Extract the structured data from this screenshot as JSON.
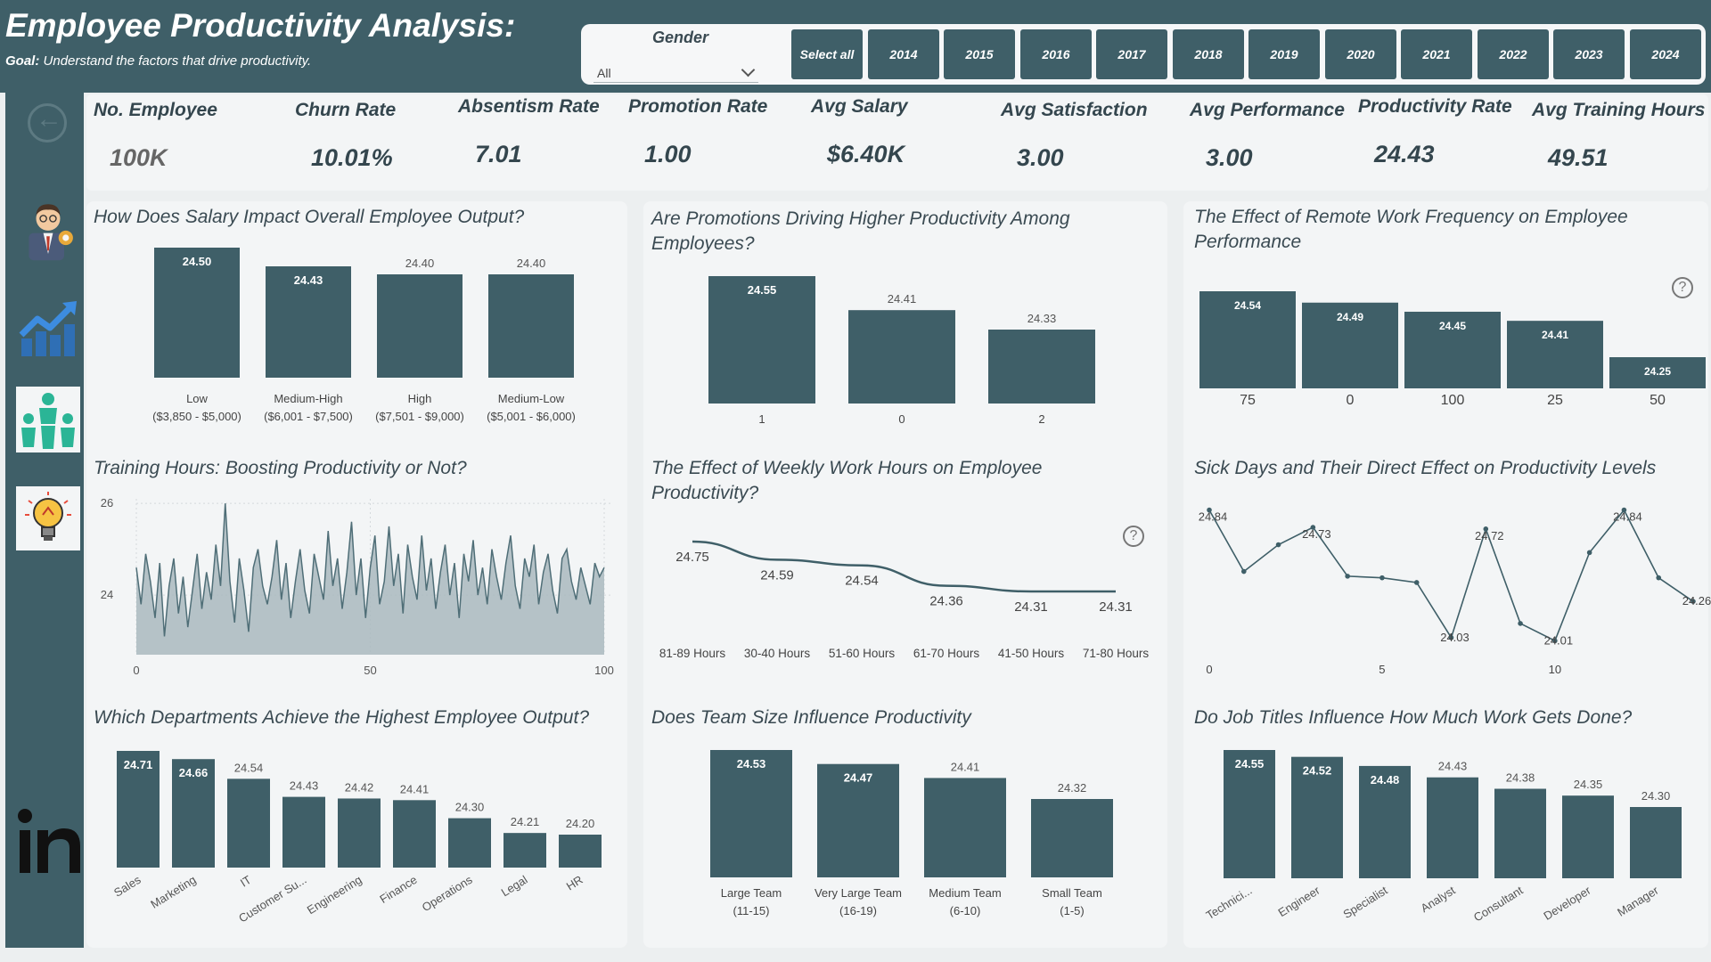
{
  "header": {
    "title": "Employee Productivity Analysis:",
    "goal_label": "Goal:",
    "goal_text": "Understand the factors that drive productivity."
  },
  "filters": {
    "gender_label": "Gender",
    "gender_value": "All",
    "years": [
      "Select all",
      "2014",
      "2015",
      "2016",
      "2017",
      "2018",
      "2019",
      "2020",
      "2021",
      "2022",
      "2023",
      "2024"
    ]
  },
  "kpis": [
    {
      "label": "No. Employee",
      "value": "100K"
    },
    {
      "label": "Churn Rate",
      "value": "10.01%"
    },
    {
      "label": "Absentism Rate",
      "value": "7.01"
    },
    {
      "label": "Promotion Rate",
      "value": "1.00"
    },
    {
      "label": "Avg Salary",
      "value": "$6.40K"
    },
    {
      "label": "Avg Satisfaction",
      "value": "3.00"
    },
    {
      "label": "Avg Performance",
      "value": "3.00"
    },
    {
      "label": "Productivity Rate",
      "value": "24.43"
    },
    {
      "label": "Avg Training Hours",
      "value": "49.51"
    }
  ],
  "sidebar": {
    "icons": [
      "back-icon",
      "manager-icon",
      "trend-chart-icon",
      "team-icon",
      "idea-bulb-icon",
      "linkedin-icon"
    ]
  },
  "colors": {
    "bar": "#3f5f68",
    "header": "#3f5f68",
    "area": "#a9b9be"
  },
  "chart_data": [
    {
      "id": "salary",
      "type": "bar",
      "title": "How Does Salary Impact Overall Employee Output?",
      "categories": [
        "Low ($3,850 - $5,000)",
        "Medium-High ($6,001 - $7,500)",
        "High ($7,501 - $9,000)",
        "Medium-Low ($5,001 - $6,000)"
      ],
      "values": [
        24.5,
        24.43,
        24.4,
        24.4
      ]
    },
    {
      "id": "promotions",
      "type": "bar",
      "title": "Are Promotions Driving Higher Productivity Among Employees?",
      "categories": [
        "1",
        "0",
        "2"
      ],
      "values": [
        24.55,
        24.41,
        24.33
      ]
    },
    {
      "id": "remote",
      "type": "bar",
      "title": "The Effect of Remote Work Frequency on Employee Performance",
      "categories": [
        "75",
        "0",
        "100",
        "25",
        "50"
      ],
      "values": [
        24.54,
        24.49,
        24.45,
        24.41,
        24.25
      ]
    },
    {
      "id": "training",
      "type": "area",
      "title": "Training Hours: Boosting Productivity or Not?",
      "x_ticks": [
        "0",
        "50",
        "100"
      ],
      "y_ticks": [
        "24",
        "26"
      ],
      "xlim": [
        0,
        100
      ],
      "ylim": [
        22.7,
        26.1
      ],
      "values": [
        24.6,
        23.8,
        24.9,
        24.3,
        23.5,
        24.7,
        23.1,
        24.2,
        24.8,
        23.6,
        24.4,
        23.3,
        24.1,
        24.9,
        23.7,
        24.5,
        23.9,
        25.1,
        24.2,
        26.0,
        24.3,
        23.4,
        24.8,
        24.1,
        23.2,
        24.6,
        25.0,
        24.2,
        23.8,
        24.4,
        25.2,
        23.9,
        24.7,
        23.5,
        24.3,
        25.0,
        24.1,
        23.6,
        24.9,
        24.4,
        23.9,
        25.4,
        24.2,
        24.8,
        23.7,
        24.5,
        25.6,
        24.0,
        24.8,
        23.5,
        24.6,
        25.3,
        23.8,
        24.3,
        25.5,
        24.2,
        24.9,
        23.6,
        25.1,
        24.4,
        23.9,
        25.3,
        24.1,
        24.8,
        23.7,
        24.5,
        25.1,
        24.0,
        24.7,
        23.5,
        24.9,
        24.3,
        25.2,
        24.0,
        24.6,
        23.8,
        25.0,
        24.4,
        23.9,
        24.7,
        25.3,
        24.2,
        23.7,
        24.8,
        24.4,
        25.1,
        23.8,
        24.5,
        24.9,
        24.1,
        23.6,
        24.8,
        25.0,
        24.3,
        23.9,
        24.6,
        24.2,
        23.8,
        24.7,
        24.4,
        24.6
      ],
      "series_count": 101
    },
    {
      "id": "weekly_hours",
      "type": "line",
      "title": "The Effect of Weekly Work Hours on Employee Productivity?",
      "categories": [
        "81-89 Hours",
        "30-40 Hours",
        "51-60 Hours",
        "61-70 Hours",
        "41-50 Hours",
        "71-80 Hours"
      ],
      "values": [
        24.75,
        24.59,
        24.54,
        24.36,
        24.31,
        24.31
      ]
    },
    {
      "id": "sick_days",
      "type": "line",
      "title": "Sick Days and Their Direct Effect on Productivity Levels",
      "x_ticks": [
        "0",
        "5",
        "10"
      ],
      "xlim": [
        0,
        14
      ],
      "ylim": [
        23.95,
        24.9
      ],
      "values": [
        24.84,
        24.45,
        24.62,
        24.73,
        24.42,
        24.41,
        24.38,
        24.03,
        24.72,
        24.12,
        24.01,
        24.57,
        24.84,
        24.41,
        24.26
      ],
      "labels": {
        "0": "24.84",
        "3": "24.73",
        "7": "24.03",
        "8": "24.72",
        "10": "24.01",
        "12": "24.84",
        "14": "24.26"
      }
    },
    {
      "id": "departments",
      "type": "bar",
      "title": "Which Departments Achieve the Highest Employee Output?",
      "categories": [
        "Sales",
        "Marketing",
        "IT",
        "Customer Su...",
        "Engineering",
        "Finance",
        "Operations",
        "Legal",
        "HR"
      ],
      "values": [
        24.71,
        24.66,
        24.54,
        24.43,
        24.42,
        24.41,
        24.3,
        24.21,
        24.2
      ]
    },
    {
      "id": "team_size",
      "type": "bar",
      "title": "Does Team Size Influence Productivity",
      "categories": [
        "Large Team (11-15)",
        "Very Large Team (16-19)",
        "Medium Team (6-10)",
        "Small Team (1-5)"
      ],
      "values": [
        24.53,
        24.47,
        24.41,
        24.32
      ]
    },
    {
      "id": "job_titles",
      "type": "bar",
      "title": "Do Job Titles Influence How Much Work Gets Done?",
      "categories": [
        "Technici...",
        "Engineer",
        "Specialist",
        "Analyst",
        "Consultant",
        "Developer",
        "Manager"
      ],
      "values": [
        24.55,
        24.52,
        24.48,
        24.43,
        24.38,
        24.35,
        24.3
      ]
    }
  ]
}
